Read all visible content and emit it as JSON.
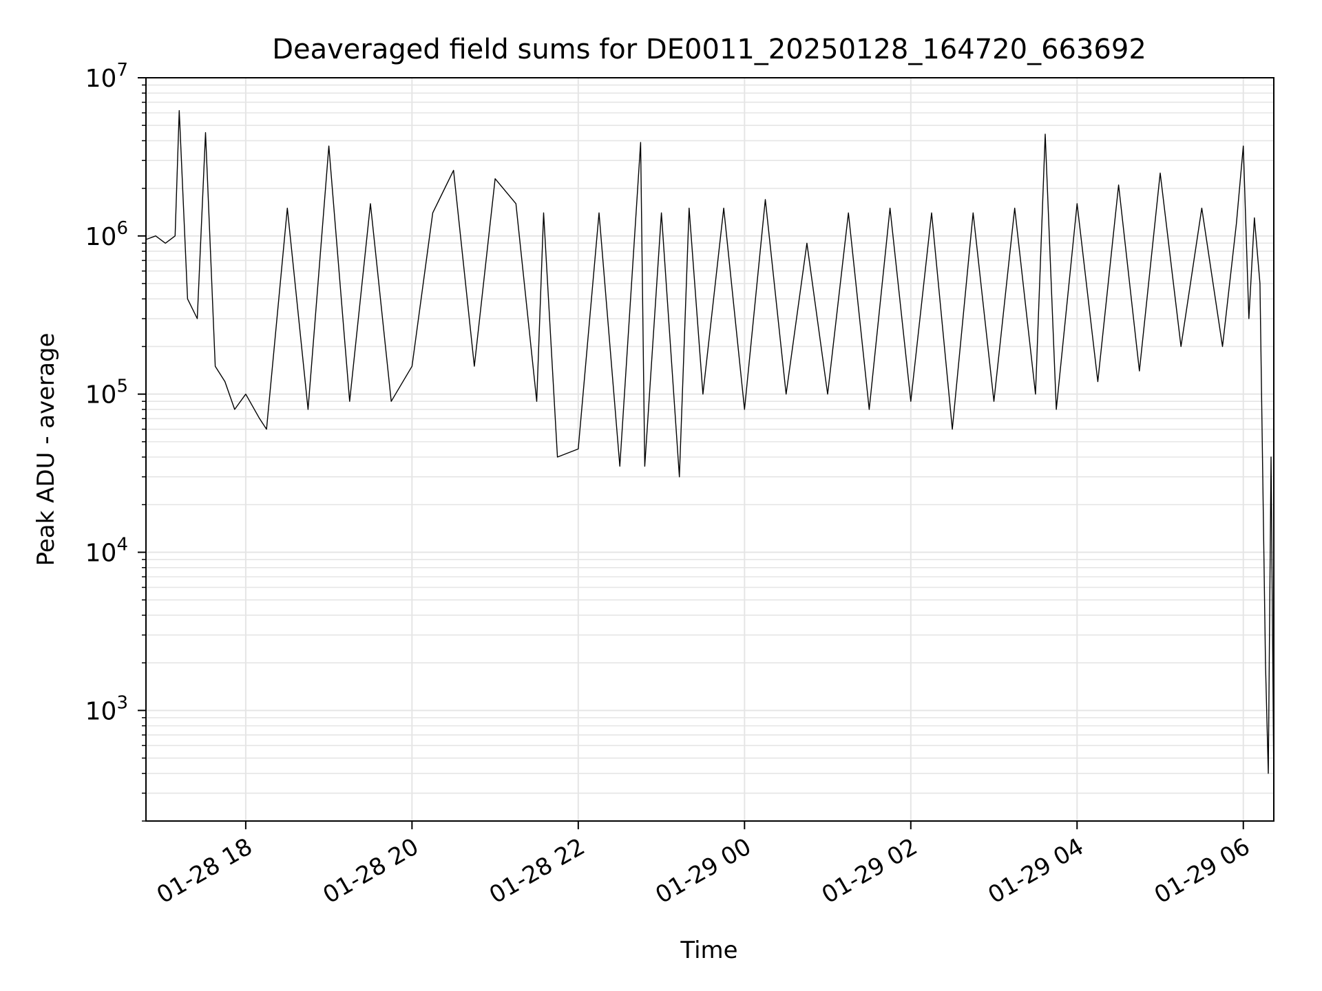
{
  "chart_data": {
    "type": "line",
    "title": "Deaveraged field sums for DE0011_20250128_164720_663692",
    "xlabel": "Time",
    "ylabel": "Peak ADU - average",
    "yscale": "log",
    "ylim": [
      200,
      10000000
    ],
    "xlim": [
      "2025-01-28 16:48",
      "2025-01-29 06:22"
    ],
    "grid": true,
    "line_color": "#000000",
    "grid_color": "#e5e5e5",
    "x_ticks": [
      {
        "t": "2025-01-28 18:00",
        "label": "01-28 18"
      },
      {
        "t": "2025-01-28 20:00",
        "label": "01-28 20"
      },
      {
        "t": "2025-01-28 22:00",
        "label": "01-28 22"
      },
      {
        "t": "2025-01-29 00:00",
        "label": "01-29 00"
      },
      {
        "t": "2025-01-29 02:00",
        "label": "01-29 02"
      },
      {
        "t": "2025-01-29 04:00",
        "label": "01-29 04"
      },
      {
        "t": "2025-01-29 06:00",
        "label": "01-29 06"
      }
    ],
    "y_ticks": [
      {
        "v": 1000,
        "base": "10",
        "exp": "3"
      },
      {
        "v": 10000,
        "base": "10",
        "exp": "4"
      },
      {
        "v": 100000,
        "base": "10",
        "exp": "5"
      },
      {
        "v": 1000000,
        "base": "10",
        "exp": "6"
      },
      {
        "v": 10000000,
        "base": "10",
        "exp": "7"
      }
    ],
    "series": [
      {
        "x": [
          "2025-01-28 16:48",
          "2025-01-28 16:55",
          "2025-01-28 17:02",
          "2025-01-28 17:09",
          "2025-01-28 17:12",
          "2025-01-28 17:18",
          "2025-01-28 17:25",
          "2025-01-28 17:31",
          "2025-01-28 17:38",
          "2025-01-28 17:45",
          "2025-01-28 17:52",
          "2025-01-28 18:00",
          "2025-01-28 18:10",
          "2025-01-28 18:15",
          "2025-01-28 18:30",
          "2025-01-28 18:45",
          "2025-01-28 19:00",
          "2025-01-28 19:15",
          "2025-01-28 19:30",
          "2025-01-28 19:45",
          "2025-01-28 20:00",
          "2025-01-28 20:15",
          "2025-01-28 20:30",
          "2025-01-28 20:45",
          "2025-01-28 21:00",
          "2025-01-28 21:15",
          "2025-01-28 21:30",
          "2025-01-28 21:35",
          "2025-01-28 21:45",
          "2025-01-28 22:00",
          "2025-01-28 22:15",
          "2025-01-28 22:30",
          "2025-01-28 22:45",
          "2025-01-28 22:48",
          "2025-01-28 23:00",
          "2025-01-28 23:13",
          "2025-01-28 23:20",
          "2025-01-28 23:30",
          "2025-01-28 23:45",
          "2025-01-29 00:00",
          "2025-01-29 00:15",
          "2025-01-29 00:30",
          "2025-01-29 00:45",
          "2025-01-29 01:00",
          "2025-01-29 01:15",
          "2025-01-29 01:30",
          "2025-01-29 01:45",
          "2025-01-29 02:00",
          "2025-01-29 02:15",
          "2025-01-29 02:30",
          "2025-01-29 02:45",
          "2025-01-29 03:00",
          "2025-01-29 03:15",
          "2025-01-29 03:30",
          "2025-01-29 03:37",
          "2025-01-29 03:45",
          "2025-01-29 04:00",
          "2025-01-29 04:15",
          "2025-01-29 04:30",
          "2025-01-29 04:45",
          "2025-01-29 05:00",
          "2025-01-29 05:15",
          "2025-01-29 05:30",
          "2025-01-29 05:45",
          "2025-01-29 05:55",
          "2025-01-29 06:00",
          "2025-01-29 06:04",
          "2025-01-29 06:08",
          "2025-01-29 06:12",
          "2025-01-29 06:16",
          "2025-01-29 06:18",
          "2025-01-29 06:20",
          "2025-01-29 06:22"
        ],
        "y": [
          950000,
          1000000,
          900000,
          1000000,
          6200000,
          400000,
          300000,
          4500000,
          150000,
          120000,
          80000,
          100000,
          70000,
          60000,
          1500000,
          80000,
          3700000,
          90000,
          1600000,
          90000,
          150000,
          1400000,
          2600000,
          150000,
          2300000,
          1600000,
          90000,
          1400000,
          40000,
          45000,
          1400000,
          35000,
          3900000,
          35000,
          1400000,
          30000,
          1500000,
          100000,
          1500000,
          80000,
          1700000,
          100000,
          900000,
          100000,
          1400000,
          80000,
          1500000,
          90000,
          1400000,
          60000,
          1400000,
          90000,
          1500000,
          100000,
          4400000,
          80000,
          1600000,
          120000,
          2100000,
          140000,
          2500000,
          200000,
          1500000,
          200000,
          1200000,
          3700000,
          300000,
          1300000,
          500000,
          2000,
          400,
          40000,
          350
        ]
      }
    ]
  }
}
